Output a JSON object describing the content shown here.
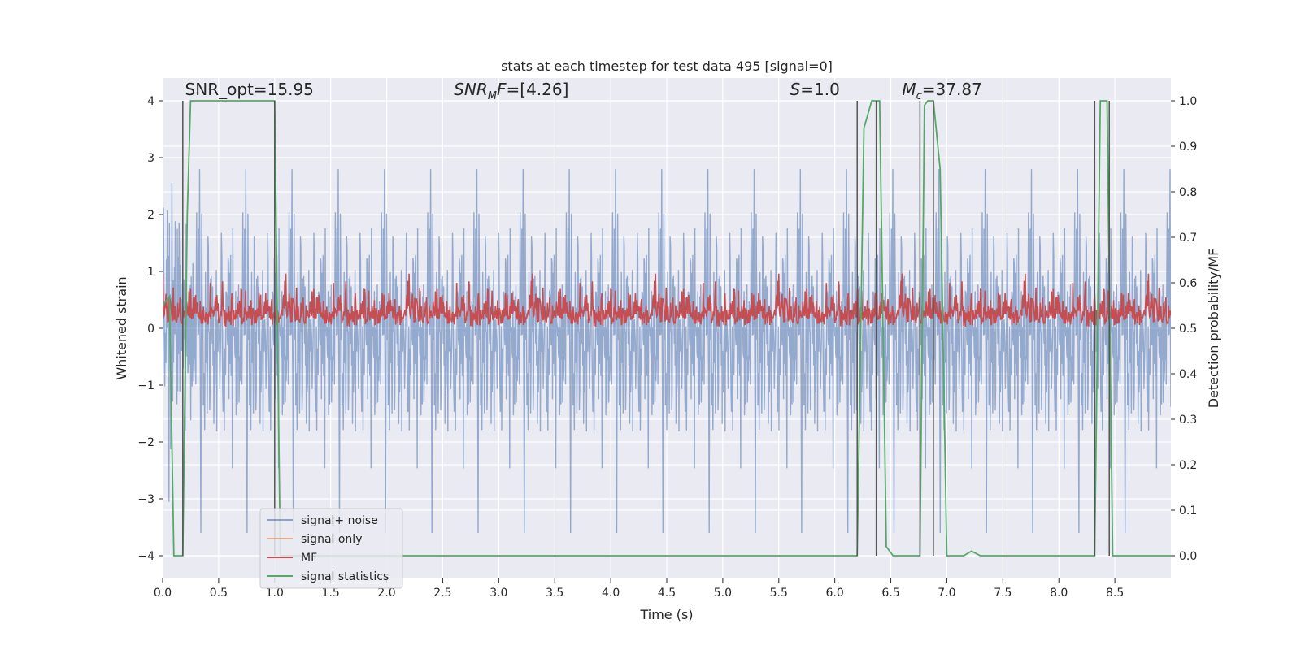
{
  "chart_data": {
    "type": "line",
    "title": "stats at each timestep for test data 495 [signal=0]",
    "xlabel": "Time (s)",
    "ylabel_left": "Whitened strain",
    "ylabel_right": "Detection probability/MF",
    "xlim": [
      0.0,
      9.0
    ],
    "ylim_left": [
      -4.4,
      4.4
    ],
    "ylim_right": [
      -0.05,
      1.05
    ],
    "x_ticks": [
      0.0,
      0.5,
      1.0,
      1.5,
      2.0,
      2.5,
      3.0,
      3.5,
      4.0,
      4.5,
      5.0,
      5.5,
      6.0,
      6.5,
      7.0,
      7.5,
      8.0,
      8.5
    ],
    "y_ticks_left": [
      -4,
      -3,
      -2,
      -1,
      0,
      1,
      2,
      3,
      4
    ],
    "y_ticks_right": [
      0.0,
      0.1,
      0.2,
      0.3,
      0.4,
      0.5,
      0.6,
      0.7,
      0.8,
      0.9,
      1.0
    ],
    "grid": true,
    "legend_position": "lower-left",
    "annotations": [
      {
        "text": "SNR_opt=15.95",
        "x": 0.2,
        "y": 4.1
      },
      {
        "text": "SNR_MF=[4.26]",
        "x": 2.6,
        "y": 4.1
      },
      {
        "text": "S=1.0",
        "x": 5.6,
        "y": 4.1
      },
      {
        "text": "M_c=37.87",
        "x": 6.6,
        "y": 4.1
      }
    ],
    "vertical_lines": [
      0.18,
      1.0,
      6.2,
      6.37,
      6.76,
      6.88,
      8.32,
      8.45
    ],
    "series": [
      {
        "name": "signal+ noise",
        "color": "#4c72b0",
        "axis": "left",
        "style": "noise",
        "x_range": [
          0.0,
          9.0
        ],
        "amplitude_core": 1.6,
        "spike_max": 3.6
      },
      {
        "name": "signal only",
        "color": "#dd8452",
        "axis": "left",
        "style": "line",
        "x": [],
        "y": []
      },
      {
        "name": "MF",
        "color": "#c44e52",
        "axis": "right",
        "style": "band",
        "x_range": [
          0.0,
          9.0
        ],
        "baseline": 0.5,
        "band_max": 0.6,
        "spike_max": 0.62
      },
      {
        "name": "signal statistics",
        "color": "#55a868",
        "axis": "right",
        "style": "line",
        "x": [
          0.0,
          0.06,
          0.1,
          0.12,
          0.18,
          0.22,
          0.25,
          1.0,
          1.05,
          1.1,
          2.0,
          3.0,
          4.0,
          5.0,
          6.0,
          6.2,
          6.26,
          6.33,
          6.4,
          6.46,
          6.52,
          6.6,
          6.76,
          6.8,
          6.83,
          6.88,
          6.94,
          7.0,
          7.15,
          7.22,
          7.3,
          8.0,
          8.32,
          8.37,
          8.43,
          8.48,
          9.0
        ],
        "y": [
          0.55,
          0.57,
          0.0,
          0.0,
          0.0,
          0.75,
          1.0,
          1.0,
          0.0,
          0.0,
          0.0,
          0.0,
          0.0,
          0.0,
          0.0,
          0.0,
          0.94,
          1.0,
          1.0,
          0.02,
          0.0,
          0.0,
          0.0,
          0.99,
          1.0,
          1.0,
          0.85,
          0.0,
          0.0,
          0.01,
          0.0,
          0.0,
          0.0,
          1.0,
          1.0,
          0.0,
          0.0
        ]
      }
    ]
  }
}
